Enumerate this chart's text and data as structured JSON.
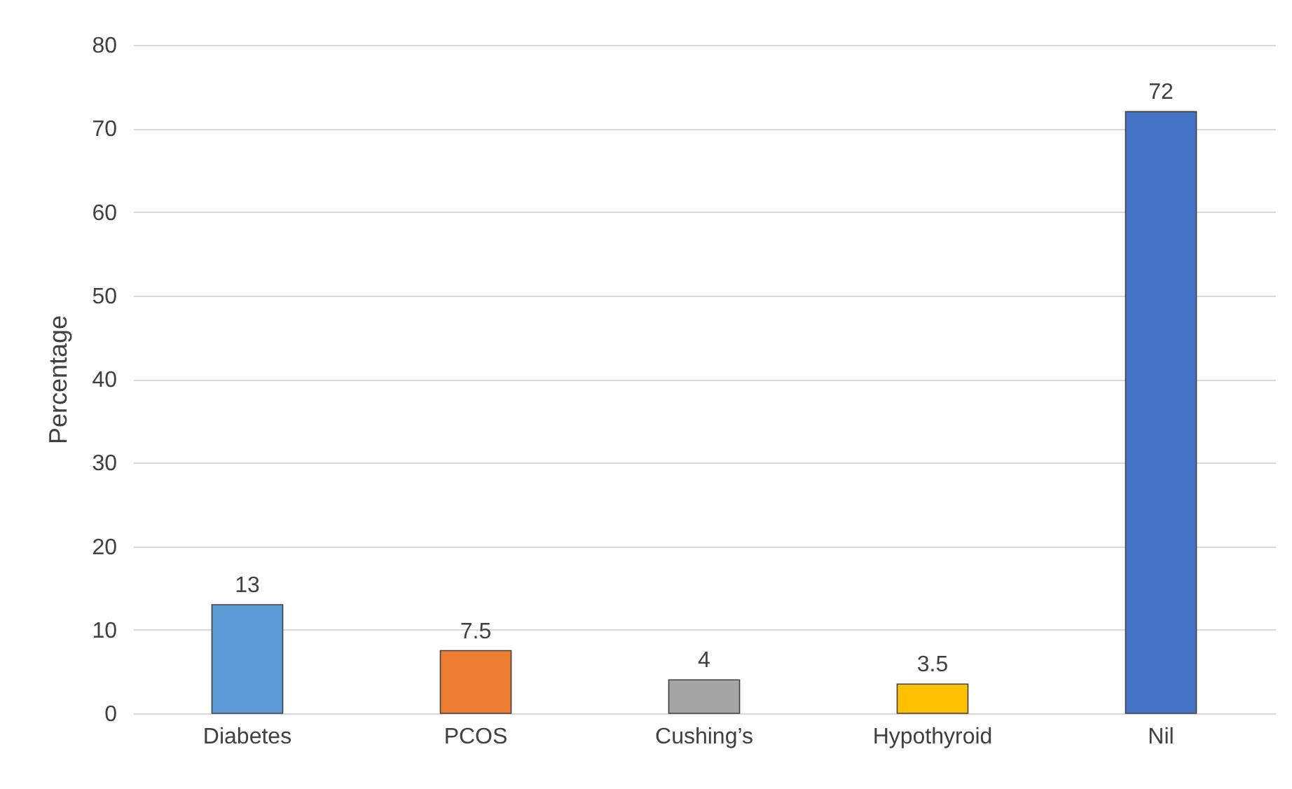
{
  "chart_data": {
    "type": "bar",
    "categories": [
      "Diabetes",
      "PCOS",
      "Cushing’s",
      "Hypothyroid",
      "Nil"
    ],
    "values": [
      13,
      7.5,
      4,
      3.5,
      72
    ],
    "colors": [
      "#5b9bd5",
      "#ed7d31",
      "#a5a5a5",
      "#ffc000",
      "#4472c4"
    ],
    "ylabel": "Percentage",
    "ylim": [
      0,
      80
    ],
    "yticks": [
      0,
      10,
      20,
      30,
      40,
      50,
      60,
      70,
      80
    ],
    "grid": "y",
    "data_labels": true
  }
}
